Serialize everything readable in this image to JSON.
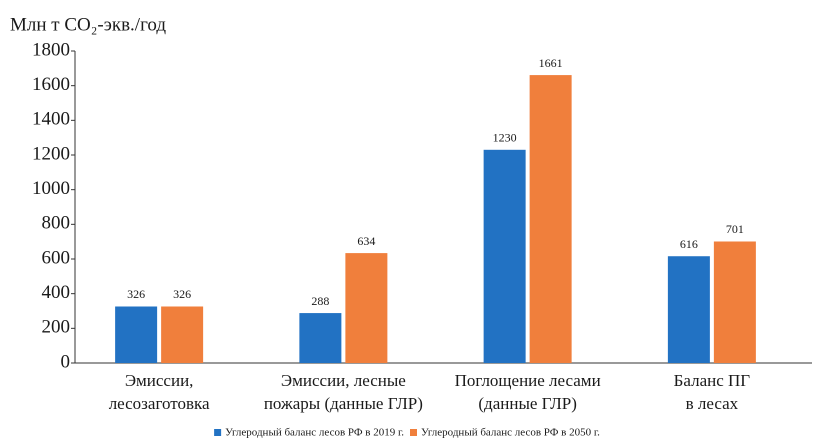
{
  "chart_data": {
    "type": "bar",
    "y_axis_label": "Млн т CO₂-экв./год",
    "categories": [
      [
        "Эмиссии,",
        "лесозаготовка"
      ],
      [
        "Эмиссии, лесные",
        "пожары (данные ГЛР)"
      ],
      [
        "Поглощение лесами",
        "(данные ГЛР)"
      ],
      [
        "Баланс ПГ",
        "в лесах"
      ]
    ],
    "series": [
      {
        "name": "Углеродный баланс лесов РФ в 2019 г.",
        "color": "#2272c3",
        "values": [
          326,
          288,
          1230,
          616
        ]
      },
      {
        "name": "Углеродный баланс лесов РФ в 2050 г.",
        "color": "#f07f3c",
        "values": [
          326,
          634,
          1661,
          701
        ]
      }
    ],
    "ylim": [
      0,
      1800
    ],
    "yticks": [
      0,
      200,
      400,
      600,
      800,
      1000,
      1200,
      1400,
      1600,
      1800
    ],
    "legend": "bottom",
    "grid": false
  }
}
